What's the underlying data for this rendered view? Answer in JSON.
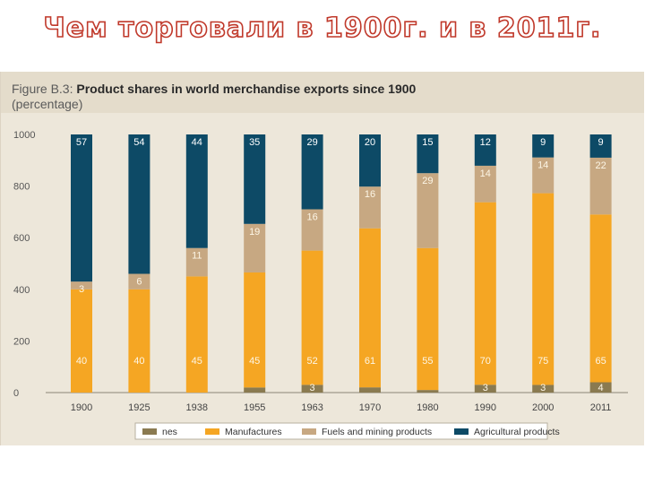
{
  "slide_title": "Чем торговали в 1900г. и в 2011г.",
  "figure": {
    "label": "Figure B.3:",
    "title": "Product shares in world merchandise exports since 1900",
    "subtitle": "(percentage)"
  },
  "colors": {
    "nes": "#8a7a50",
    "manufactures": "#f5a623",
    "fuels_mining": "#c7a882",
    "agricultural": "#0d4a66",
    "panel": "#ede7da",
    "header": "#e4dccb"
  },
  "chart_data": {
    "type": "bar",
    "stacked": true,
    "title": "Product shares in world merchandise exports since 1900",
    "subtitle": "(percentage)",
    "categories": [
      "1900",
      "1925",
      "1938",
      "1955",
      "1963",
      "1970",
      "1980",
      "1990",
      "2000",
      "2011"
    ],
    "y_ticks": [
      "1000",
      "800",
      "600",
      "400",
      "200",
      "0"
    ],
    "ylim": [
      0,
      1000
    ],
    "series": [
      {
        "name": "nes",
        "color": "#8a7a50",
        "values": [
          0,
          0,
          0,
          2,
          3,
          2,
          1,
          3,
          3,
          4
        ],
        "labels": [
          "",
          "",
          "",
          "",
          "3",
          "",
          "",
          "3",
          "3",
          "4"
        ]
      },
      {
        "name": "Manufactures",
        "color": "#f5a623",
        "values": [
          40,
          40,
          45,
          45,
          52,
          61,
          55,
          70,
          75,
          65
        ],
        "labels": [
          "40",
          "40",
          "45",
          "45",
          "52",
          "61",
          "55",
          "70",
          "75",
          "65"
        ]
      },
      {
        "name": "Fuels and mining products",
        "color": "#c7a882",
        "values": [
          3,
          6,
          11,
          19,
          16,
          16,
          29,
          14,
          14,
          22
        ],
        "labels": [
          "3",
          "6",
          "11",
          "19",
          "16",
          "16",
          "29",
          "14",
          "14",
          "22"
        ]
      },
      {
        "name": "Agricultural products",
        "color": "#0d4a66",
        "values": [
          57,
          54,
          44,
          35,
          29,
          20,
          15,
          12,
          9,
          9
        ],
        "labels": [
          "57",
          "54",
          "44",
          "35",
          "29",
          "20",
          "15",
          "12",
          "9",
          "9"
        ]
      }
    ],
    "legend": {
      "position": "bottom",
      "items": [
        "nes",
        "Manufactures",
        "Fuels and mining products",
        "Agricultural products"
      ]
    },
    "grid": false
  }
}
